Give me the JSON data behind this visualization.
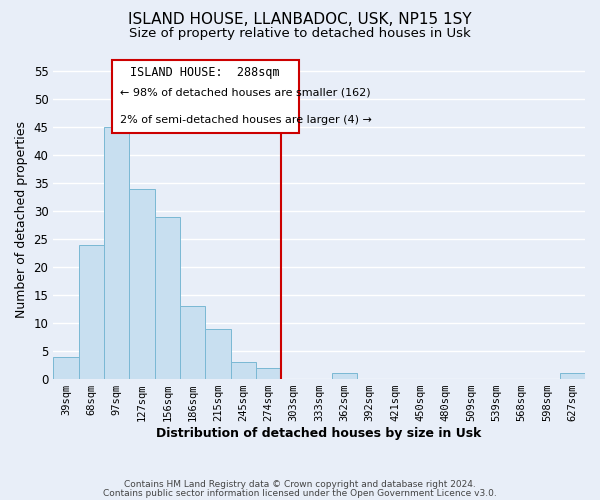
{
  "title": "ISLAND HOUSE, LLANBADOC, USK, NP15 1SY",
  "subtitle": "Size of property relative to detached houses in Usk",
  "xlabel": "Distribution of detached houses by size in Usk",
  "ylabel": "Number of detached properties",
  "bar_labels": [
    "39sqm",
    "68sqm",
    "97sqm",
    "127sqm",
    "156sqm",
    "186sqm",
    "215sqm",
    "245sqm",
    "274sqm",
    "303sqm",
    "333sqm",
    "362sqm",
    "392sqm",
    "421sqm",
    "450sqm",
    "480sqm",
    "509sqm",
    "539sqm",
    "568sqm",
    "598sqm",
    "627sqm"
  ],
  "bar_values": [
    4,
    24,
    45,
    34,
    29,
    13,
    9,
    3,
    2,
    0,
    0,
    1,
    0,
    0,
    0,
    0,
    0,
    0,
    0,
    0,
    1
  ],
  "bar_color": "#c8dff0",
  "bar_edge_color": "#7ab8d4",
  "vline_x": 8.5,
  "vline_color": "#cc0000",
  "ylim": [
    0,
    57
  ],
  "yticks": [
    0,
    5,
    10,
    15,
    20,
    25,
    30,
    35,
    40,
    45,
    50,
    55
  ],
  "annotation_title": "ISLAND HOUSE:  288sqm",
  "annotation_line1": "← 98% of detached houses are smaller (162)",
  "annotation_line2": "2% of semi-detached houses are larger (4) →",
  "footer1": "Contains HM Land Registry data © Crown copyright and database right 2024.",
  "footer2": "Contains public sector information licensed under the Open Government Licence v3.0.",
  "background_color": "#e8eef8",
  "grid_color": "#ffffff",
  "title_fontsize": 11,
  "subtitle_fontsize": 9.5,
  "axis_label_fontsize": 9
}
